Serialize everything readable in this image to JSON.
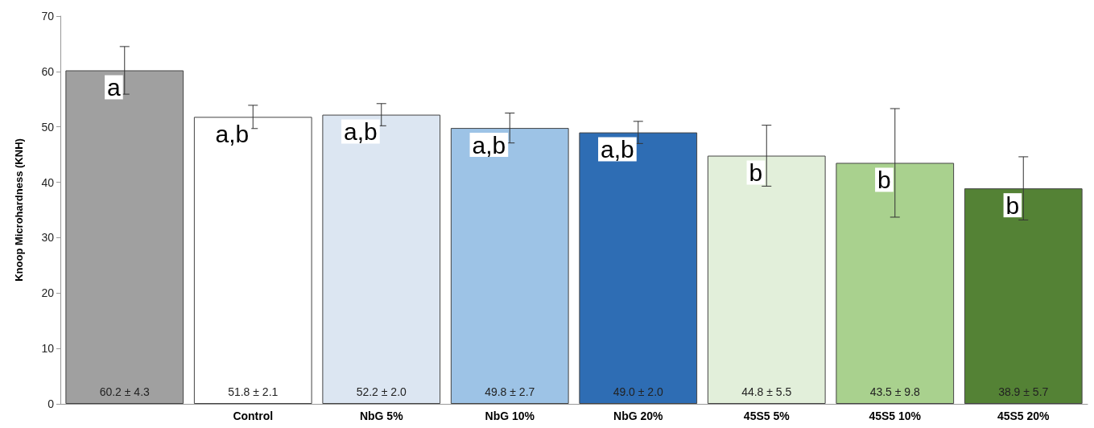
{
  "chart_data": {
    "type": "bar",
    "ylabel": "Knoop Microhardness (KNH)",
    "categories": [
      null,
      "Control",
      "NbG 5%",
      "NbG 10%",
      "NbG 20%",
      "45S5 5%",
      "45S5 10%",
      "45S5 20%"
    ],
    "values": [
      60.2,
      51.8,
      52.2,
      49.8,
      49.0,
      44.8,
      43.5,
      38.9
    ],
    "errors": [
      4.3,
      2.1,
      2.0,
      2.7,
      2.0,
      5.5,
      9.8,
      5.7
    ],
    "value_labels": [
      "60.2 ± 4.3",
      "51.8 ± 2.1",
      "52.2 ± 2.0",
      "49.8 ± 2.7",
      "49.0 ± 2.0",
      "44.8 ± 5.5",
      "43.5 ± 9.8",
      "38.9 ± 5.7"
    ],
    "colors": [
      "#a0a0a0",
      "#ffffff",
      "#dce6f2",
      "#9dc3e6",
      "#2e6db4",
      "#e2efda",
      "#a9d18e",
      "#548235"
    ],
    "ylim": [
      0,
      70
    ],
    "yticks": [
      0,
      10,
      20,
      30,
      40,
      50,
      60,
      70
    ],
    "grid": false,
    "annotations": [
      {
        "text": "a",
        "y": 60.2
      },
      {
        "text": "a,b",
        "x": "Control",
        "y": 51.8
      },
      {
        "text": "a,b",
        "x": "NbG 5%",
        "y": 52.2
      },
      {
        "text": "a,b",
        "x": "NbG 10%",
        "y": 49.8
      },
      {
        "text": "a,b",
        "x": "NbG 20%",
        "y": 49.0
      },
      {
        "text": "b",
        "x": "45S5 5%",
        "y": 44.8
      },
      {
        "text": "b",
        "x": "45S5 10%",
        "y": 43.5
      },
      {
        "text": "b",
        "x": "45S5 20%",
        "y": 38.9
      }
    ]
  }
}
